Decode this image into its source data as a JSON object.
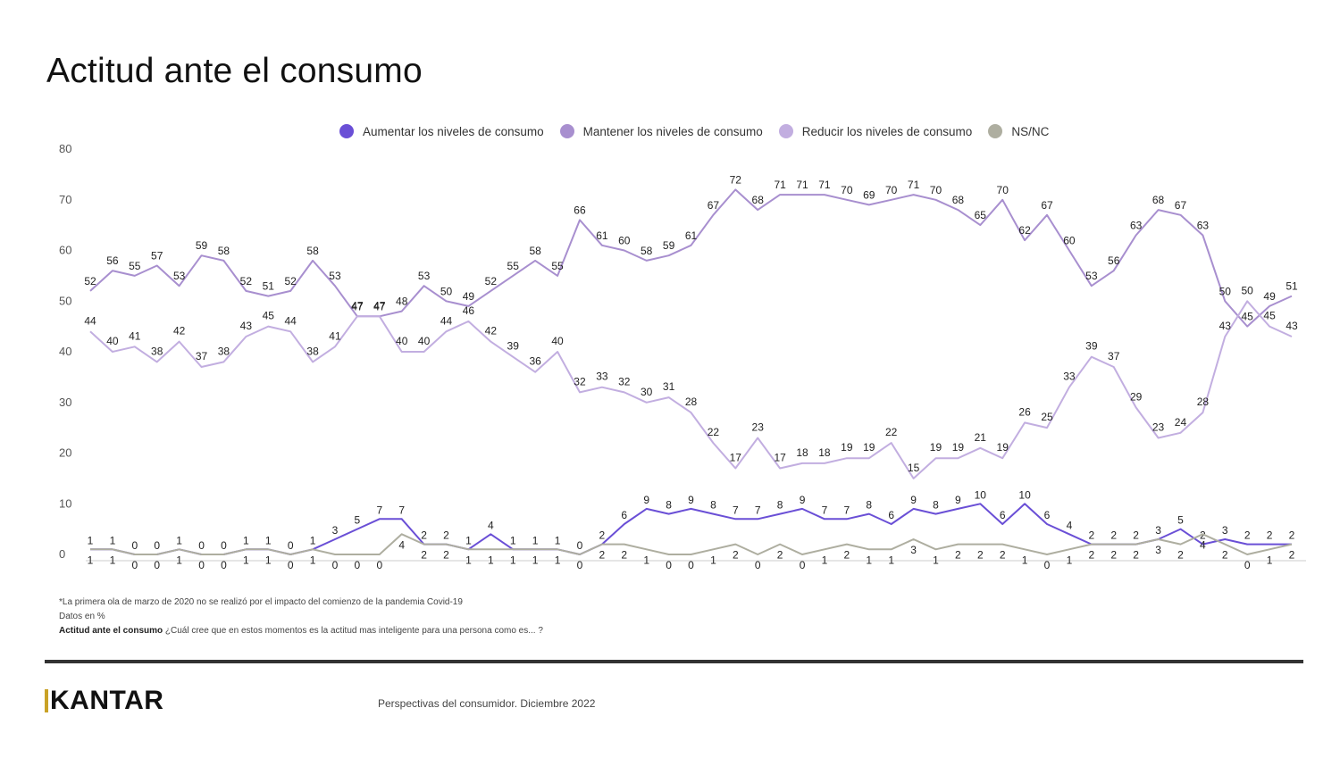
{
  "title": "Actitud ante el consumo",
  "legend": {
    "aumentar": "Aumentar los niveles de consumo",
    "mantener": "Mantener los niveles de consumo",
    "reducir": "Reducir los niveles de consumo",
    "nsnc": "NS/NC"
  },
  "notes": {
    "line1": "*La primera ola de marzo de 2020 no se realizó por el impacto del comienzo de la pandemia Covid-19",
    "line2": "Datos en %",
    "line3_bold": "Actitud ante el consumo",
    "line3_rest": " ¿Cuál cree que en estos momentos es la actitud mas inteligente para una persona como es... ?"
  },
  "footer": {
    "logo": "KANTAR",
    "text": "Perspectivas del consumidor. Diciembre 2022"
  },
  "colors": {
    "aumentar": "#6a4fd6",
    "mantener": "#a88fcf",
    "reducir": "#c2aee0",
    "nsnc": "#aeaea0",
    "axis": "#cccccc",
    "divider": "#333333",
    "logo_accent": "#c9a227"
  },
  "chart_data": {
    "type": "line",
    "ylim": [
      0,
      80
    ],
    "yticks": [
      0,
      10,
      20,
      30,
      40,
      50,
      60,
      70,
      80
    ],
    "grid": false,
    "legend_position": "top-center",
    "xlabel": "",
    "ylabel": "",
    "series": [
      {
        "name": "Aumentar los niveles de consumo",
        "color": "#6a4fd6",
        "values": [
          1,
          1,
          0,
          0,
          1,
          0,
          0,
          1,
          1,
          0,
          1,
          3,
          5,
          7,
          7,
          2,
          2,
          1,
          4,
          1,
          1,
          1,
          0,
          2,
          6,
          9,
          8,
          9,
          8,
          7,
          7,
          8,
          9,
          7,
          7,
          8,
          6,
          9,
          8,
          9,
          10,
          6,
          10,
          6,
          4,
          2,
          2,
          2,
          3,
          5,
          2,
          3,
          2,
          2,
          2
        ]
      },
      {
        "name": "Mantener los niveles de consumo",
        "color": "#a88fcf",
        "values": [
          52,
          56,
          55,
          57,
          53,
          59,
          58,
          52,
          51,
          52,
          58,
          53,
          47,
          47,
          48,
          53,
          50,
          49,
          52,
          55,
          58,
          55,
          66,
          61,
          60,
          58,
          59,
          61,
          67,
          72,
          68,
          71,
          71,
          71,
          70,
          69,
          70,
          71,
          70,
          68,
          65,
          70,
          62,
          67,
          60,
          53,
          56,
          63,
          68,
          67,
          63,
          50,
          45,
          49,
          51
        ]
      },
      {
        "name": "Reducir los niveles de consumo",
        "color": "#c2aee0",
        "values": [
          44,
          40,
          41,
          38,
          42,
          37,
          38,
          43,
          45,
          44,
          38,
          41,
          47,
          47,
          40,
          40,
          44,
          46,
          42,
          39,
          36,
          40,
          32,
          33,
          32,
          30,
          31,
          28,
          22,
          17,
          23,
          17,
          18,
          18,
          19,
          19,
          22,
          15,
          19,
          19,
          21,
          19,
          26,
          25,
          33,
          39,
          37,
          29,
          23,
          24,
          28,
          43,
          50,
          45,
          43
        ]
      },
      {
        "name": "NS/NC",
        "color": "#aeaea0",
        "values": [
          1,
          1,
          0,
          0,
          1,
          0,
          0,
          1,
          1,
          0,
          1,
          0,
          0,
          0,
          4,
          2,
          2,
          1,
          1,
          1,
          1,
          1,
          0,
          2,
          2,
          1,
          0,
          0,
          1,
          2,
          0,
          2,
          0,
          1,
          2,
          1,
          1,
          3,
          1,
          2,
          2,
          2,
          1,
          0,
          1,
          2,
          2,
          2,
          3,
          2,
          4,
          2,
          0,
          1,
          2
        ]
      }
    ]
  }
}
